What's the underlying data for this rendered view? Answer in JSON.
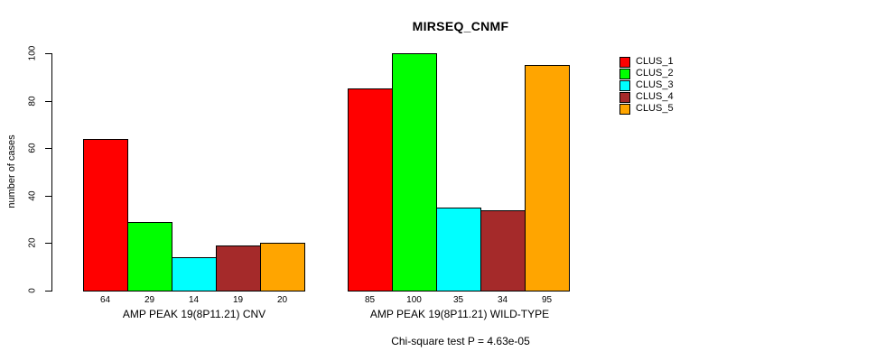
{
  "chart_data": {
    "type": "bar",
    "title": "MIRSEQ_CNMF",
    "ylabel": "number of cases",
    "xlabel": "",
    "ylim": [
      0,
      100
    ],
    "yticks": [
      0,
      20,
      40,
      60,
      80,
      100
    ],
    "grid": false,
    "legend_position": "right",
    "categories": [
      "AMP PEAK 19(8P11.21) CNV",
      "AMP PEAK 19(8P11.21) WILD-TYPE"
    ],
    "series": [
      {
        "name": "CLUS_1",
        "color": "#ff0000",
        "values": [
          64,
          85
        ]
      },
      {
        "name": "CLUS_2",
        "color": "#00ff00",
        "values": [
          29,
          100
        ]
      },
      {
        "name": "CLUS_3",
        "color": "#00ffff",
        "values": [
          14,
          35
        ]
      },
      {
        "name": "CLUS_4",
        "color": "#a52a2a",
        "values": [
          19,
          34
        ]
      },
      {
        "name": "CLUS_5",
        "color": "#ffa500",
        "values": [
          20,
          95
        ]
      }
    ],
    "bar_value_labels": [
      [
        64,
        29,
        14,
        19,
        20
      ],
      [
        85,
        100,
        35,
        34,
        95
      ]
    ],
    "annotation": "Chi-square test P = 4.63e-05"
  }
}
